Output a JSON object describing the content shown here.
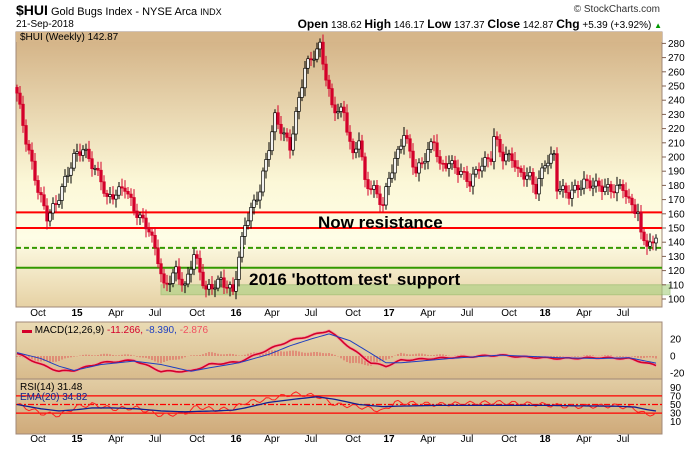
{
  "header": {
    "symbol": "$HUI",
    "name": "Gold Bugs Index - NYSE Arca",
    "exchange": "INDX",
    "date": "21-Sep-2018",
    "copyright": "© StockCharts.com",
    "open_label": "Open",
    "open": "138.62",
    "high_label": "High",
    "high": "146.17",
    "low_label": "Low",
    "low": "137.37",
    "close_label": "Close",
    "close": "142.87",
    "chg_label": "Chg",
    "chg": "+5.39 (+3.92%)",
    "up_arrow": "▲"
  },
  "colors": {
    "up": "#000000",
    "down": "#d4002a",
    "resistance": "#ff0000",
    "support": "#339900",
    "macd": "#d4002a",
    "signal": "#2040c0",
    "rsi": "#ff2020",
    "ema": "#102090"
  },
  "chart_data": [
    {
      "type": "candlestick",
      "title": "$HUI (Weekly) 142.87",
      "legend": "$HUI (Weekly) 142.87",
      "ylim": [
        95,
        285
      ],
      "y_ticks": [
        100,
        110,
        120,
        130,
        140,
        150,
        160,
        170,
        180,
        190,
        200,
        210,
        220,
        230,
        240,
        250,
        260,
        270,
        280
      ],
      "x_ticks": [
        {
          "label": "Oct",
          "week": 7
        },
        {
          "label": "15",
          "week": 20
        },
        {
          "label": "Apr",
          "week": 33
        },
        {
          "label": "Jul",
          "week": 46
        },
        {
          "label": "Oct",
          "week": 60
        },
        {
          "label": "16",
          "week": 73
        },
        {
          "label": "Apr",
          "week": 85
        },
        {
          "label": "Jul",
          "week": 98
        },
        {
          "label": "Oct",
          "week": 112
        },
        {
          "label": "17",
          "week": 124
        },
        {
          "label": "Apr",
          "week": 137
        },
        {
          "label": "Jul",
          "week": 150
        },
        {
          "label": "Oct",
          "week": 164
        },
        {
          "label": "18",
          "week": 176
        },
        {
          "label": "Apr",
          "week": 189
        },
        {
          "label": "Jul",
          "week": 202
        }
      ],
      "weeks": 214,
      "close_anchors": [
        [
          0,
          245
        ],
        [
          3,
          212
        ],
        [
          7,
          177
        ],
        [
          10,
          158
        ],
        [
          13,
          167
        ],
        [
          19,
          200
        ],
        [
          22,
          206
        ],
        [
          28,
          184
        ],
        [
          30,
          170
        ],
        [
          36,
          179
        ],
        [
          39,
          163
        ],
        [
          44,
          149
        ],
        [
          47,
          128
        ],
        [
          49,
          108
        ],
        [
          53,
          120
        ],
        [
          56,
          108
        ],
        [
          59,
          132
        ],
        [
          63,
          106
        ],
        [
          68,
          113
        ],
        [
          72,
          105
        ],
        [
          76,
          153
        ],
        [
          81,
          177
        ],
        [
          86,
          228
        ],
        [
          91,
          207
        ],
        [
          96,
          263
        ],
        [
          101,
          278
        ],
        [
          105,
          235
        ],
        [
          109,
          231
        ],
        [
          112,
          200
        ],
        [
          114,
          214
        ],
        [
          116,
          182
        ],
        [
          119,
          177
        ],
        [
          122,
          166
        ],
        [
          124,
          186
        ],
        [
          127,
          203
        ],
        [
          129,
          217
        ],
        [
          133,
          189
        ],
        [
          136,
          200
        ],
        [
          139,
          212
        ],
        [
          141,
          193
        ],
        [
          144,
          196
        ],
        [
          148,
          189
        ],
        [
          151,
          182
        ],
        [
          154,
          193
        ],
        [
          158,
          200
        ],
        [
          159,
          214
        ],
        [
          162,
          200
        ],
        [
          165,
          200
        ],
        [
          167,
          189
        ],
        [
          171,
          186
        ],
        [
          173,
          177
        ],
        [
          176,
          196
        ],
        [
          179,
          201
        ],
        [
          180,
          179
        ],
        [
          184,
          174
        ],
        [
          189,
          182
        ],
        [
          193,
          180
        ],
        [
          198,
          177
        ],
        [
          202,
          179
        ],
        [
          204,
          168
        ],
        [
          207,
          161
        ],
        [
          208,
          144
        ],
        [
          210,
          140
        ],
        [
          212,
          137
        ],
        [
          213,
          142.87
        ]
      ],
      "levels": [
        {
          "name": "resistance-upper",
          "value": 161,
          "style": "solid",
          "color": "#ff0000"
        },
        {
          "name": "resistance-lower",
          "value": 150,
          "style": "solid",
          "color": "#ff0000"
        },
        {
          "name": "support-dashed",
          "value": 136,
          "style": "dashed",
          "color": "#339900"
        },
        {
          "name": "support-solid",
          "value": 122,
          "style": "solid",
          "color": "#339900"
        }
      ],
      "support_band": {
        "from": 103,
        "to": 110,
        "start_week": 48
      },
      "annotations": {
        "resistance": "Now resistance",
        "support": "2016 'bottom test' support"
      }
    },
    {
      "type": "line",
      "title": "MACD(12,26,9)",
      "legend": {
        "label": "MACD(12,26,9)",
        "macd": "-11.266,",
        "signal": "-8.390,",
        "hist": "-2.876"
      },
      "ylim": [
        -26,
        36
      ],
      "y_ticks": [
        20,
        0,
        -20
      ],
      "anchors": [
        [
          0,
          3,
          4
        ],
        [
          8,
          -10,
          -3
        ],
        [
          14,
          -18,
          -12
        ],
        [
          19,
          -17,
          -17
        ],
        [
          28,
          -8,
          -10
        ],
        [
          39,
          -5,
          -6
        ],
        [
          48,
          -18,
          -10
        ],
        [
          58,
          -18,
          -18
        ],
        [
          64,
          -10,
          -14
        ],
        [
          74,
          -7,
          -8
        ],
        [
          84,
          8,
          2
        ],
        [
          91,
          18,
          12
        ],
        [
          98,
          24,
          20
        ],
        [
          104,
          30,
          26
        ],
        [
          111,
          10,
          18
        ],
        [
          118,
          -8,
          3
        ],
        [
          123,
          -12,
          -8
        ],
        [
          128,
          -5,
          -8
        ],
        [
          144,
          -2,
          -3
        ],
        [
          161,
          1,
          1
        ],
        [
          168,
          -1,
          0
        ],
        [
          181,
          -3,
          -2
        ],
        [
          194,
          -2,
          -3
        ],
        [
          204,
          -3,
          -2
        ],
        [
          213,
          -11.266,
          -8.39
        ]
      ]
    },
    {
      "type": "line",
      "title": "RSI(14)",
      "legend": {
        "rsi": "RSI(14) 31.48",
        "ema": "EMA(20) 34.82"
      },
      "ylim": [
        0,
        100
      ],
      "y_ticks": [
        90,
        70,
        50,
        30,
        10
      ],
      "ref_lines": [
        70,
        50,
        30
      ],
      "anchors": [
        [
          0,
          50,
          50
        ],
        [
          8,
          30,
          40
        ],
        [
          14,
          25,
          35
        ],
        [
          20,
          45,
          38
        ],
        [
          25,
          50,
          42
        ],
        [
          32,
          40,
          42
        ],
        [
          40,
          42,
          40
        ],
        [
          48,
          25,
          35
        ],
        [
          56,
          30,
          33
        ],
        [
          60,
          45,
          34
        ],
        [
          66,
          38,
          35
        ],
        [
          72,
          40,
          37
        ],
        [
          76,
          55,
          42
        ],
        [
          84,
          62,
          55
        ],
        [
          92,
          75,
          62
        ],
        [
          100,
          70,
          68
        ],
        [
          106,
          50,
          62
        ],
        [
          114,
          45,
          50
        ],
        [
          122,
          35,
          45
        ],
        [
          126,
          55,
          46
        ],
        [
          140,
          50,
          48
        ],
        [
          160,
          55,
          48
        ],
        [
          175,
          50,
          48
        ],
        [
          185,
          45,
          47
        ],
        [
          200,
          47,
          46
        ],
        [
          206,
          40,
          44
        ],
        [
          210,
          25,
          38
        ],
        [
          213,
          31.48,
          34.82
        ]
      ]
    }
  ]
}
